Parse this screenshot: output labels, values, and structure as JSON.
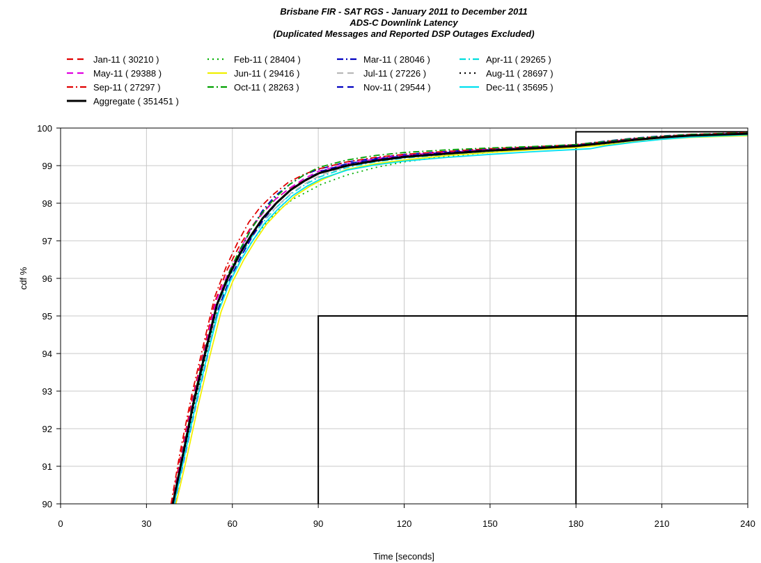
{
  "chart_data": {
    "type": "line",
    "title": [
      "Brisbane FIR - SAT RGS - January 2011 to December 2011",
      "ADS-C Downlink Latency",
      "(Duplicated Messages and Reported DSP Outages Excluded)"
    ],
    "xlabel": "Time [seconds]",
    "ylabel": "cdf %",
    "xlim": [
      0,
      240
    ],
    "ylim": [
      90,
      100
    ],
    "xticks": [
      0,
      30,
      60,
      90,
      120,
      150,
      180,
      210,
      240
    ],
    "yticks": [
      90,
      91,
      92,
      93,
      94,
      95,
      96,
      97,
      98,
      99,
      100
    ],
    "grid": true,
    "legend_position": "top",
    "series": [
      {
        "name": "Jan-11 ( 30210 )",
        "color": "#e00000",
        "dash": "dash",
        "x": [
          38.8,
          42,
          46,
          50,
          54,
          58,
          62,
          66,
          70,
          75,
          80,
          85,
          90,
          100,
          110,
          120,
          135,
          150,
          165,
          180,
          190,
          200,
          210,
          220,
          240
        ],
        "y": [
          90,
          91.3,
          92.8,
          94.1,
          95.4,
          96.2,
          96.8,
          97.3,
          97.7,
          98.1,
          98.4,
          98.6,
          98.8,
          99.0,
          99.15,
          99.25,
          99.35,
          99.42,
          99.48,
          99.55,
          99.62,
          99.7,
          99.76,
          99.81,
          99.86
        ]
      },
      {
        "name": "Feb-11 ( 28404 )",
        "color": "#00b000",
        "dash": "dot",
        "x": [
          39.5,
          43,
          47,
          51,
          55,
          59,
          63,
          67,
          71,
          76,
          81,
          86,
          91,
          100,
          110,
          120,
          135,
          150,
          165,
          180,
          190,
          200,
          210,
          220,
          240
        ],
        "y": [
          90,
          91.2,
          92.6,
          94.0,
          95.2,
          95.9,
          96.5,
          97.0,
          97.4,
          97.8,
          98.1,
          98.3,
          98.5,
          98.75,
          98.95,
          99.1,
          99.25,
          99.35,
          99.43,
          99.5,
          99.58,
          99.67,
          99.74,
          99.8,
          99.85
        ]
      },
      {
        "name": "Mar-11 ( 28046 )",
        "color": "#0000c0",
        "dash": "dashdot",
        "x": [
          39.2,
          42.5,
          46.5,
          50.5,
          54.5,
          58.5,
          62.5,
          66.5,
          70.5,
          75,
          80,
          85,
          90,
          100,
          110,
          120,
          135,
          150,
          165,
          180,
          190,
          200,
          210,
          220,
          240
        ],
        "y": [
          90,
          91.3,
          92.7,
          94.0,
          95.3,
          96.1,
          96.7,
          97.3,
          97.8,
          98.2,
          98.5,
          98.75,
          98.9,
          99.1,
          99.2,
          99.3,
          99.38,
          99.45,
          99.5,
          99.56,
          99.65,
          99.73,
          99.79,
          99.83,
          99.87
        ]
      },
      {
        "name": "Apr-11 ( 29265 )",
        "color": "#00dddd",
        "dash": "dashdot",
        "x": [
          39.3,
          42.8,
          46.8,
          50.8,
          54.8,
          58.8,
          62.8,
          66.8,
          70.8,
          75.5,
          80.5,
          85.5,
          90.5,
          100,
          110,
          120,
          135,
          150,
          165,
          180,
          190,
          200,
          210,
          220,
          240
        ],
        "y": [
          90,
          91.2,
          92.7,
          94.0,
          95.2,
          96.0,
          96.6,
          97.1,
          97.5,
          97.9,
          98.25,
          98.5,
          98.7,
          98.95,
          99.1,
          99.2,
          99.3,
          99.38,
          99.45,
          99.52,
          99.6,
          99.68,
          99.75,
          99.8,
          99.85
        ]
      },
      {
        "name": "May-11 ( 29388 )",
        "color": "#e000e0",
        "dash": "dash",
        "x": [
          39.0,
          42.3,
          46.3,
          50.3,
          54.3,
          58.3,
          62.3,
          66.3,
          70.3,
          75,
          80,
          85,
          90,
          100,
          110,
          120,
          135,
          150,
          165,
          180,
          190,
          200,
          210,
          220,
          240
        ],
        "y": [
          90,
          91.3,
          92.8,
          94.1,
          95.4,
          96.1,
          96.7,
          97.3,
          97.7,
          98.1,
          98.4,
          98.65,
          98.85,
          99.05,
          99.18,
          99.28,
          99.36,
          99.43,
          99.49,
          99.55,
          99.63,
          99.71,
          99.77,
          99.82,
          99.87
        ]
      },
      {
        "name": "Jun-11 ( 29416 )",
        "color": "#f0f000",
        "dash": "solid",
        "x": [
          40.3,
          44,
          48,
          52,
          56,
          60,
          64,
          68,
          72,
          77,
          82,
          87,
          92,
          100,
          110,
          120,
          135,
          150,
          165,
          180,
          190,
          200,
          210,
          220,
          240
        ],
        "y": [
          90,
          91.2,
          92.6,
          93.9,
          95.1,
          95.9,
          96.5,
          97.0,
          97.45,
          97.85,
          98.2,
          98.45,
          98.65,
          98.9,
          99.05,
          99.15,
          99.27,
          99.35,
          99.42,
          99.48,
          99.55,
          99.63,
          99.7,
          99.75,
          99.8
        ]
      },
      {
        "name": "Jul-11 ( 27226 )",
        "color": "#b8b8b8",
        "dash": "dash",
        "x": [
          39.6,
          43,
          47,
          51,
          55,
          59,
          63,
          67,
          71,
          76,
          81,
          86,
          91,
          100,
          110,
          120,
          135,
          150,
          165,
          180,
          190,
          200,
          210,
          220,
          240
        ],
        "y": [
          90,
          91.2,
          92.7,
          94.0,
          95.2,
          96.0,
          96.6,
          97.1,
          97.55,
          97.95,
          98.3,
          98.55,
          98.75,
          98.98,
          99.12,
          99.22,
          99.32,
          99.4,
          99.46,
          99.53,
          99.61,
          99.69,
          99.75,
          99.8,
          99.85
        ]
      },
      {
        "name": "Aug-11 ( 28697 )",
        "color": "#000000",
        "dash": "dot",
        "x": [
          39.4,
          42.8,
          46.8,
          50.8,
          54.8,
          58.8,
          62.8,
          66.8,
          70.8,
          75.5,
          80.5,
          85.5,
          90.5,
          100,
          110,
          120,
          135,
          150,
          165,
          180,
          190,
          200,
          210,
          220,
          240
        ],
        "y": [
          90,
          91.2,
          92.7,
          94.0,
          95.3,
          96.05,
          96.65,
          97.15,
          97.6,
          98.0,
          98.35,
          98.6,
          98.8,
          99.02,
          99.15,
          99.25,
          99.34,
          99.41,
          99.47,
          99.53,
          99.6,
          99.68,
          99.75,
          99.8,
          99.85
        ]
      },
      {
        "name": "Sep-11 ( 27297 )",
        "color": "#e00000",
        "dash": "dashdot",
        "x": [
          38.6,
          41.8,
          45.8,
          49.8,
          53.8,
          57.8,
          61.8,
          65.8,
          69.8,
          74.5,
          79.5,
          84.5,
          89.5,
          100,
          110,
          120,
          135,
          150,
          165,
          180,
          190,
          200,
          210,
          220,
          240
        ],
        "y": [
          90,
          91.4,
          92.9,
          94.2,
          95.5,
          96.3,
          96.95,
          97.5,
          97.9,
          98.25,
          98.55,
          98.75,
          98.9,
          99.1,
          99.22,
          99.3,
          99.38,
          99.45,
          99.5,
          99.56,
          99.64,
          99.72,
          99.78,
          99.83,
          99.88
        ]
      },
      {
        "name": "Oct-11 ( 28263 )",
        "color": "#00a000",
        "dash": "dashdot",
        "x": [
          39.1,
          42.5,
          46.5,
          50.5,
          54.5,
          58.5,
          62.5,
          66.5,
          70.5,
          75,
          80,
          85,
          90,
          100,
          110,
          120,
          135,
          150,
          165,
          180,
          190,
          200,
          210,
          220,
          240
        ],
        "y": [
          90,
          91.3,
          92.8,
          94.1,
          95.3,
          96.1,
          96.75,
          97.3,
          97.75,
          98.15,
          98.5,
          98.75,
          98.95,
          99.15,
          99.27,
          99.35,
          99.42,
          99.47,
          99.51,
          99.56,
          99.64,
          99.72,
          99.78,
          99.83,
          99.87
        ]
      },
      {
        "name": "Nov-11 ( 29544 )",
        "color": "#0000c0",
        "dash": "dash",
        "x": [
          39.8,
          43.2,
          47.2,
          51.2,
          55.2,
          59.2,
          63.2,
          67.2,
          71.2,
          76,
          81,
          86,
          91,
          100,
          110,
          120,
          135,
          150,
          165,
          180,
          190,
          200,
          210,
          220,
          240
        ],
        "y": [
          90,
          91.2,
          92.6,
          93.9,
          95.2,
          96.0,
          96.6,
          97.15,
          97.6,
          98.05,
          98.4,
          98.65,
          98.85,
          99.05,
          99.17,
          99.26,
          99.35,
          99.42,
          99.48,
          99.54,
          99.62,
          99.7,
          99.76,
          99.81,
          99.86
        ]
      },
      {
        "name": "Dec-11 ( 35695 )",
        "color": "#00e0f0",
        "dash": "solid",
        "x": [
          39.7,
          43.1,
          47.1,
          51.1,
          55.1,
          59.1,
          63.1,
          67.1,
          71.1,
          76,
          81,
          86,
          91,
          100,
          110,
          120,
          135,
          150,
          165,
          180,
          185,
          190,
          200,
          210,
          220,
          240
        ],
        "y": [
          90,
          91.2,
          92.6,
          93.9,
          95.1,
          95.9,
          96.5,
          97.0,
          97.45,
          97.85,
          98.2,
          98.45,
          98.65,
          98.88,
          99.02,
          99.12,
          99.22,
          99.3,
          99.37,
          99.43,
          99.45,
          99.52,
          99.62,
          99.7,
          99.76,
          99.82
        ]
      },
      {
        "name": "Aggregate ( 351451 )",
        "color": "#000000",
        "dash": "solid",
        "bold": true,
        "x": [
          39.2,
          42.6,
          46.6,
          50.6,
          54.6,
          58.6,
          62.6,
          66.6,
          70.6,
          75.3,
          80.3,
          85.3,
          90.3,
          100,
          110,
          120,
          135,
          150,
          165,
          180,
          190,
          200,
          210,
          220,
          240
        ],
        "y": [
          90,
          91.25,
          92.75,
          94.05,
          95.3,
          96.05,
          96.65,
          97.15,
          97.6,
          98.0,
          98.35,
          98.6,
          98.8,
          99.0,
          99.13,
          99.23,
          99.32,
          99.4,
          99.46,
          99.52,
          99.6,
          99.68,
          99.75,
          99.8,
          99.85
        ]
      }
    ],
    "reference_lines": [
      {
        "x": [
          90,
          90,
          240
        ],
        "y": [
          90,
          95,
          95
        ]
      },
      {
        "x": [
          180,
          180,
          240
        ],
        "y": [
          90,
          99.9,
          99.9
        ]
      }
    ]
  }
}
